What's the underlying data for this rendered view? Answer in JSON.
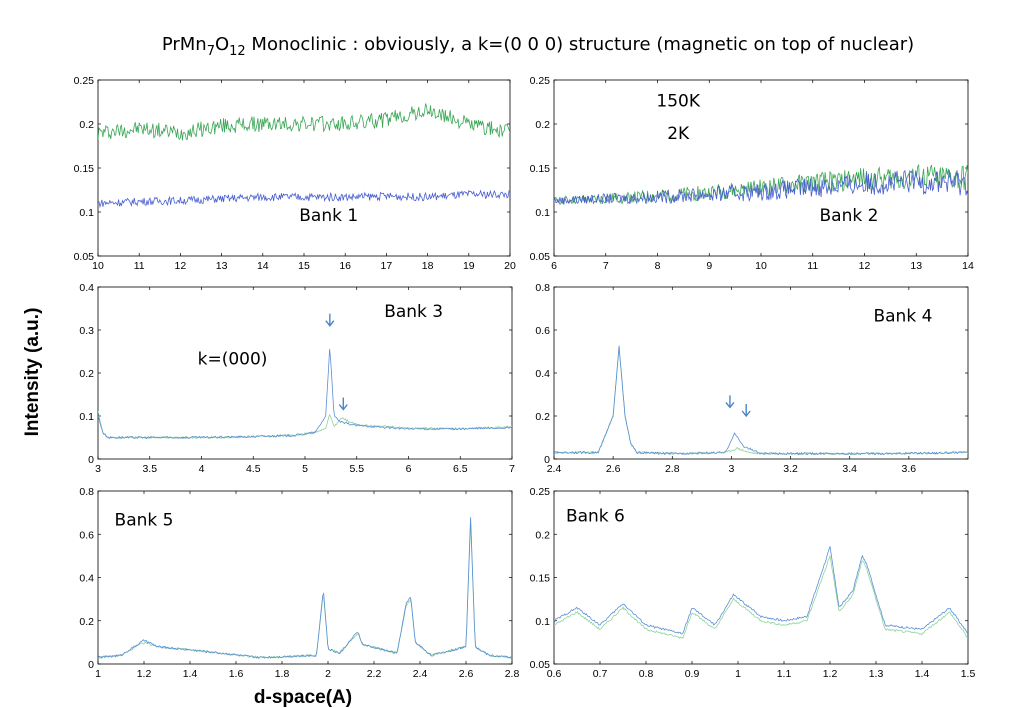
{
  "figure": {
    "title_parts": [
      "PrMn",
      "7",
      "O",
      "12",
      " Monoclinic : obviously, a k=(0 0 0) structure (magnetic on top of nuclear)"
    ],
    "ylabel": "Intensity (a.u.)",
    "xlabel": "d-space(A)"
  },
  "colors": {
    "series_150K": "#3aa655",
    "series_2K": "#4a5fd0",
    "overlay_150K": "#8fd3a0",
    "overlay_2K": "#5b8fd6",
    "arrow": "#4a86c8"
  },
  "chart_data": [
    {
      "type": "line",
      "panel": "Bank 1",
      "xlim": [
        10,
        20
      ],
      "ylim": [
        0.05,
        0.25
      ],
      "xticks": [
        10,
        11,
        12,
        13,
        14,
        15,
        16,
        17,
        18,
        19,
        20
      ],
      "yticks": [
        0.05,
        0.1,
        0.15,
        0.2,
        0.25
      ],
      "xtick_labels": [
        "10",
        "11",
        "12",
        "13",
        "14",
        "15",
        "16",
        "17",
        "18",
        "19",
        "20"
      ],
      "ytick_labels": [
        "0.05",
        "0.1",
        "0.15",
        "0.2",
        "0.25"
      ],
      "annotations": [
        {
          "text": "Bank 1",
          "x": 15.6,
          "y": 0.09
        }
      ],
      "series": [
        {
          "color": "#3aa655",
          "x": [
            10,
            11,
            12,
            13,
            14,
            15,
            16,
            17,
            18,
            19,
            20
          ],
          "y": [
            0.19,
            0.195,
            0.19,
            0.198,
            0.2,
            0.2,
            0.2,
            0.205,
            0.215,
            0.2,
            0.19
          ]
        },
        {
          "color": "#4a5fd0",
          "x": [
            10,
            11,
            12,
            13,
            14,
            15,
            16,
            17,
            18,
            19,
            20
          ],
          "y": [
            0.11,
            0.112,
            0.113,
            0.115,
            0.117,
            0.117,
            0.117,
            0.118,
            0.117,
            0.12,
            0.12
          ]
        }
      ],
      "arrows": []
    },
    {
      "type": "line",
      "panel": "Bank 2",
      "xlim": [
        6,
        14
      ],
      "ylim": [
        0.05,
        0.25
      ],
      "xticks": [
        6,
        7,
        8,
        9,
        10,
        11,
        12,
        13,
        14
      ],
      "yticks": [
        0.05,
        0.1,
        0.15,
        0.2,
        0.25
      ],
      "xtick_labels": [
        "6",
        "7",
        "8",
        "9",
        "10",
        "11",
        "12",
        "13",
        "14"
      ],
      "ytick_labels": [
        "0.05",
        "0.1",
        "0.15",
        "0.2",
        "0.25"
      ],
      "annotations": [
        {
          "text": "Bank 2",
          "x": 11.7,
          "y": 0.09
        },
        {
          "text": "150K",
          "x": 8.4,
          "y": 0.22,
          "color": "#3aa655"
        },
        {
          "text": "2K",
          "x": 8.4,
          "y": 0.183,
          "color": "#3f72bf"
        }
      ],
      "series": [
        {
          "color": "#3aa655",
          "name": "150K",
          "x": [
            6,
            7,
            8,
            9,
            10,
            11,
            12,
            13,
            14
          ],
          "y": [
            0.113,
            0.115,
            0.118,
            0.122,
            0.127,
            0.133,
            0.138,
            0.14,
            0.138
          ]
        },
        {
          "color": "#4a5fd0",
          "name": "2K",
          "x": [
            6,
            7,
            8,
            9,
            10,
            11,
            12,
            13,
            14
          ],
          "y": [
            0.113,
            0.115,
            0.117,
            0.12,
            0.123,
            0.128,
            0.132,
            0.135,
            0.133
          ]
        }
      ],
      "arrows": []
    },
    {
      "type": "line",
      "panel": "Bank 3",
      "xlim": [
        3,
        7
      ],
      "ylim": [
        0,
        0.4
      ],
      "xticks": [
        3,
        3.5,
        4,
        4.5,
        5,
        5.5,
        6,
        6.5,
        7
      ],
      "yticks": [
        0,
        0.1,
        0.2,
        0.3,
        0.4
      ],
      "xtick_labels": [
        "3",
        "3.5",
        "4",
        "4.5",
        "5",
        "5.5",
        "6",
        "6.5",
        "7"
      ],
      "ytick_labels": [
        "0",
        "0.1",
        "0.2",
        "0.3",
        "0.4"
      ],
      "annotations": [
        {
          "text": "Bank 3",
          "x": 6.05,
          "y": 0.33
        },
        {
          "text": "k=(000)",
          "x": 4.3,
          "y": 0.22
        }
      ],
      "series": [
        {
          "color": "#8fd3a0",
          "name": "150K",
          "x": [
            3,
            3.05,
            3.1,
            3.5,
            4,
            4.5,
            4.9,
            5.1,
            5.2,
            5.24,
            5.28,
            5.35,
            5.5,
            6,
            6.5,
            7
          ],
          "y": [
            0.11,
            0.06,
            0.05,
            0.05,
            0.05,
            0.052,
            0.055,
            0.062,
            0.07,
            0.105,
            0.075,
            0.095,
            0.08,
            0.072,
            0.07,
            0.075
          ]
        },
        {
          "color": "#5b8fd6",
          "name": "2K",
          "x": [
            3,
            3.05,
            3.1,
            3.5,
            4,
            4.5,
            4.9,
            5.1,
            5.2,
            5.24,
            5.28,
            5.35,
            5.5,
            6,
            6.5,
            7
          ],
          "y": [
            0.1,
            0.06,
            0.05,
            0.05,
            0.05,
            0.052,
            0.055,
            0.062,
            0.1,
            0.265,
            0.1,
            0.085,
            0.078,
            0.07,
            0.07,
            0.073
          ]
        }
      ],
      "arrows": [
        {
          "x": 5.24,
          "y": 0.31
        },
        {
          "x": 5.37,
          "y": 0.115
        }
      ]
    },
    {
      "type": "line",
      "panel": "Bank 4",
      "xlim": [
        2.4,
        3.8
      ],
      "ylim": [
        0,
        0.8
      ],
      "xticks": [
        2.4,
        2.6,
        2.8,
        3,
        3.2,
        3.4,
        3.6
      ],
      "yticks": [
        0,
        0.2,
        0.4,
        0.6,
        0.8
      ],
      "xtick_labels": [
        "2.4",
        "2.6",
        "2.8",
        "3",
        "3.2",
        "3.4",
        "3.6"
      ],
      "ytick_labels": [
        "0",
        "0.2",
        "0.4",
        "0.6",
        "0.8"
      ],
      "annotations": [
        {
          "text": "Bank 4",
          "x": 3.58,
          "y": 0.64
        }
      ],
      "series": [
        {
          "color": "#8fd3a0",
          "name": "150K",
          "x": [
            2.4,
            2.55,
            2.6,
            2.62,
            2.64,
            2.66,
            2.68,
            2.8,
            2.98,
            3.02,
            3.06,
            3.1,
            3.5,
            3.8
          ],
          "y": [
            0.03,
            0.03,
            0.2,
            0.52,
            0.2,
            0.07,
            0.03,
            0.025,
            0.03,
            0.05,
            0.03,
            0.025,
            0.025,
            0.03
          ]
        },
        {
          "color": "#5b8fd6",
          "name": "2K",
          "x": [
            2.4,
            2.55,
            2.6,
            2.62,
            2.64,
            2.66,
            2.68,
            2.8,
            2.98,
            3.01,
            3.04,
            3.1,
            3.5,
            3.8
          ],
          "y": [
            0.03,
            0.03,
            0.2,
            0.53,
            0.2,
            0.07,
            0.03,
            0.025,
            0.03,
            0.12,
            0.06,
            0.025,
            0.025,
            0.03
          ]
        }
      ],
      "arrows": [
        {
          "x": 2.995,
          "y": 0.24
        },
        {
          "x": 3.05,
          "y": 0.2
        }
      ]
    },
    {
      "type": "line",
      "panel": "Bank 5",
      "xlim": [
        1,
        2.8
      ],
      "ylim": [
        0,
        0.8
      ],
      "xticks": [
        1,
        1.2,
        1.4,
        1.6,
        1.8,
        2,
        2.2,
        2.4,
        2.6,
        2.8
      ],
      "yticks": [
        0,
        0.2,
        0.4,
        0.6,
        0.8
      ],
      "xtick_labels": [
        "1",
        "1.2",
        "1.4",
        "1.6",
        "1.8",
        "2",
        "2.2",
        "2.4",
        "2.6",
        "2.8"
      ],
      "ytick_labels": [
        "0",
        "0.2",
        "0.4",
        "0.6",
        "0.8"
      ],
      "annotations": [
        {
          "text": "Bank 5",
          "x": 1.2,
          "y": 0.64
        }
      ],
      "series": [
        {
          "color": "#8fd3a0",
          "name": "150K",
          "x": [
            1,
            1.1,
            1.2,
            1.26,
            1.45,
            1.7,
            1.95,
            1.98,
            2.0,
            2.05,
            2.13,
            2.15,
            2.3,
            2.34,
            2.36,
            2.38,
            2.45,
            2.6,
            2.62,
            2.64,
            2.7,
            2.8
          ],
          "y": [
            0.03,
            0.04,
            0.1,
            0.08,
            0.06,
            0.03,
            0.04,
            0.33,
            0.07,
            0.05,
            0.14,
            0.09,
            0.05,
            0.27,
            0.3,
            0.1,
            0.04,
            0.08,
            0.66,
            0.08,
            0.04,
            0.03
          ]
        },
        {
          "color": "#5b8fd6",
          "name": "2K",
          "x": [
            1,
            1.1,
            1.2,
            1.26,
            1.45,
            1.7,
            1.95,
            1.98,
            2.0,
            2.05,
            2.13,
            2.15,
            2.3,
            2.34,
            2.36,
            2.38,
            2.45,
            2.6,
            2.62,
            2.64,
            2.7,
            2.8
          ],
          "y": [
            0.03,
            0.04,
            0.11,
            0.08,
            0.06,
            0.03,
            0.04,
            0.35,
            0.07,
            0.05,
            0.15,
            0.09,
            0.05,
            0.28,
            0.31,
            0.1,
            0.04,
            0.08,
            0.68,
            0.08,
            0.04,
            0.03
          ]
        }
      ],
      "arrows": []
    },
    {
      "type": "line",
      "panel": "Bank 6",
      "xlim": [
        0.6,
        1.5
      ],
      "ylim": [
        0.05,
        0.25
      ],
      "xticks": [
        0.6,
        0.7,
        0.8,
        0.9,
        1.0,
        1.1,
        1.2,
        1.3,
        1.4,
        1.5
      ],
      "yticks": [
        0.05,
        0.1,
        0.15,
        0.2,
        0.25
      ],
      "xtick_labels": [
        "0.6",
        "0.7",
        "0.8",
        "0.9",
        "1",
        "1.1",
        "1.2",
        "1.3",
        "1.4",
        "1.5"
      ],
      "ytick_labels": [
        "0.05",
        "0.1",
        "0.15",
        "0.2",
        "0.25"
      ],
      "annotations": [
        {
          "text": "Bank 6",
          "x": 0.69,
          "y": 0.215
        }
      ],
      "series": [
        {
          "color": "#8fd3a0",
          "name": "150K",
          "x": [
            0.6,
            0.65,
            0.7,
            0.75,
            0.8,
            0.88,
            0.9,
            0.95,
            0.99,
            1.05,
            1.1,
            1.15,
            1.2,
            1.22,
            1.25,
            1.27,
            1.28,
            1.32,
            1.4,
            1.46,
            1.5
          ],
          "y": [
            0.095,
            0.11,
            0.09,
            0.115,
            0.09,
            0.08,
            0.11,
            0.09,
            0.125,
            0.1,
            0.095,
            0.1,
            0.175,
            0.11,
            0.13,
            0.17,
            0.16,
            0.09,
            0.085,
            0.11,
            0.08
          ]
        },
        {
          "color": "#5b8fd6",
          "name": "2K",
          "x": [
            0.6,
            0.65,
            0.7,
            0.75,
            0.8,
            0.88,
            0.9,
            0.95,
            0.99,
            1.05,
            1.1,
            1.15,
            1.2,
            1.22,
            1.25,
            1.27,
            1.28,
            1.32,
            1.4,
            1.46,
            1.5
          ],
          "y": [
            0.1,
            0.115,
            0.095,
            0.12,
            0.095,
            0.085,
            0.115,
            0.095,
            0.13,
            0.105,
            0.1,
            0.105,
            0.185,
            0.115,
            0.135,
            0.175,
            0.165,
            0.095,
            0.09,
            0.115,
            0.085
          ]
        }
      ],
      "arrows": []
    }
  ]
}
